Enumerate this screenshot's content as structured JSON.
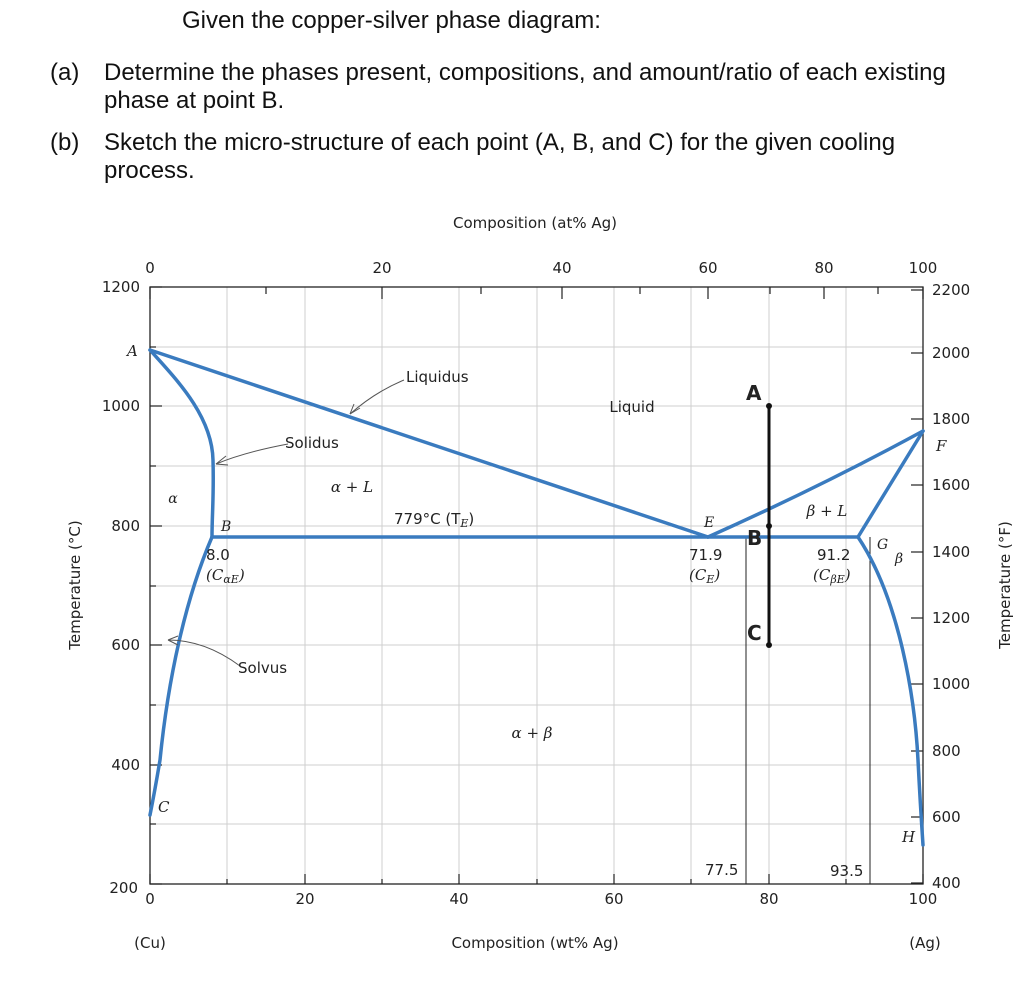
{
  "question": {
    "title": "Given the copper-silver phase diagram:",
    "a_label": "(a)",
    "a_line1": "Determine the phases present, compositions, and amount/ratio of each existing",
    "a_line2": "phase at point B.",
    "b_label": "(b)",
    "b_line1": "Sketch the micro-structure of each point (A, B, and C) for the given cooling",
    "b_line2": "process."
  },
  "diagram": {
    "top_axis_title": "Composition (at% Ag)",
    "top_ticks": [
      "0",
      "20",
      "40",
      "60",
      "80",
      "100"
    ],
    "bottom_axis_title": "Composition (wt% Ag)",
    "bottom_ticks": [
      "0",
      "20",
      "40",
      "60",
      "80",
      "100"
    ],
    "bottom_left_label": "(Cu)",
    "bottom_right_label": "(Ag)",
    "left_axis_title": "Temperature (°C)",
    "left_ticks": [
      "1200",
      "1000",
      "800",
      "600",
      "400",
      "200"
    ],
    "right_axis_title": "Temperature (°F)",
    "right_ticks": [
      "2200",
      "2000",
      "1800",
      "1600",
      "1400",
      "1200",
      "1000",
      "800",
      "600",
      "400"
    ],
    "regions": {
      "liquid": "Liquid",
      "alpha": "α",
      "alpha_l": "α + L",
      "beta_l": "β + L",
      "beta": "β",
      "alpha_beta": "α + β"
    },
    "callouts": {
      "liquidus": "Liquidus",
      "solidus": "Solidus",
      "solvus": "Solvus"
    },
    "points": {
      "A": "A",
      "C": "C",
      "B": "B",
      "E": "E",
      "F": "F",
      "G": "G",
      "H": "H"
    },
    "eutectic_temp": "779°C (T",
    "eutectic_temp_sub": "E",
    "eutectic_temp_close": ")",
    "comp_alpha_val": "8.0",
    "comp_alpha_lbl": "(C",
    "comp_alpha_sub": "αE",
    "comp_e_val": "71.9",
    "comp_e_lbl": "(C",
    "comp_e_sub": "E",
    "comp_beta_val": "91.2",
    "comp_beta_lbl": "(C",
    "comp_beta_sub": "βE",
    "close_paren": ")",
    "vline_label_1": "77.5",
    "vline_label_2": "93.5",
    "marker_A": "A",
    "marker_B": "B",
    "marker_C": "C"
  },
  "chart_data": {
    "type": "phase-diagram",
    "title": "",
    "xlabel": "Composition (wt% Ag)",
    "x2label": "Composition (at% Ag)",
    "ylabel": "Temperature (°C)",
    "y2label": "Temperature (°F)",
    "xlim": [
      0,
      100
    ],
    "ylim": [
      200,
      1200
    ],
    "grid": true,
    "eutectic": {
      "temperature_C": 779,
      "alpha_wt": 8.0,
      "eutectic_wt": 71.9,
      "beta_wt": 91.2
    },
    "melting_points_C": {
      "Cu": 1085,
      "Ag": 962
    },
    "cooling_path": {
      "wt_ag": 80,
      "A_C": 1000,
      "B_C": 779,
      "C_C": 600
    },
    "reference_lines_wt": [
      77.5,
      93.5
    ]
  },
  "colors": {
    "phase_line": "#3a7bbf",
    "grid": "#cccccc",
    "axis": "#222222",
    "path": "#111111"
  }
}
